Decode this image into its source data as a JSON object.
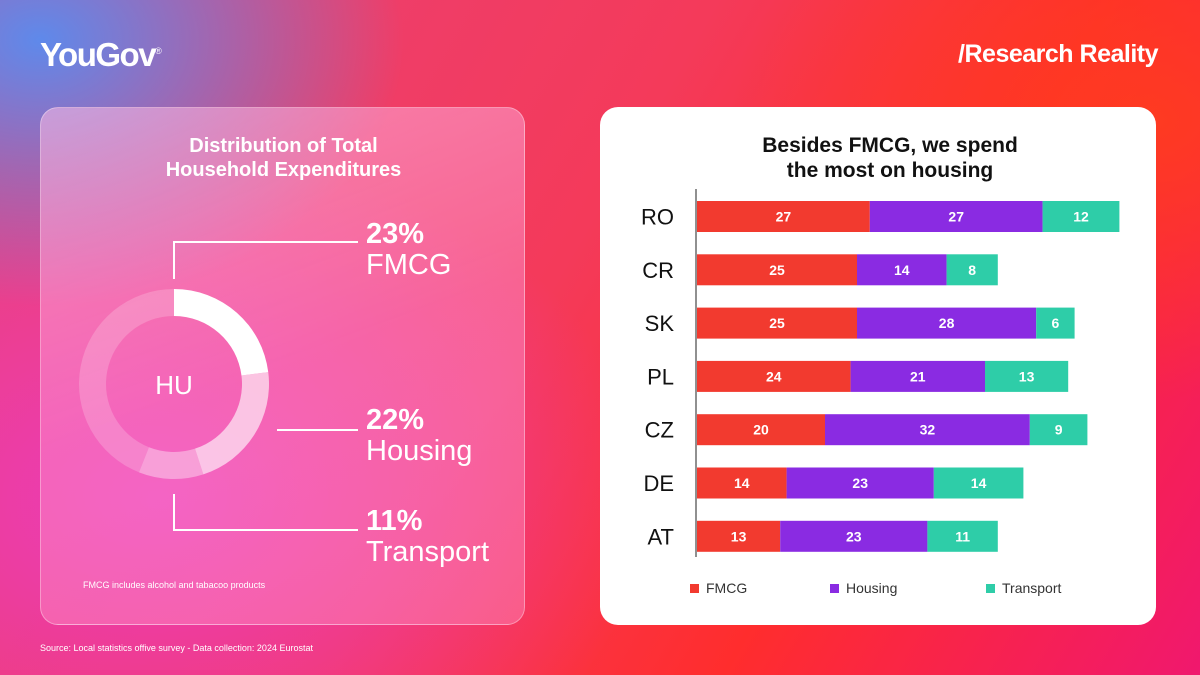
{
  "brand": {
    "logo": "YouGov",
    "logo_mark": "®",
    "tagline": "/Research Reality"
  },
  "source": "Source: Local statistics offive survey - Data collection: 2024 Eurostat",
  "left": {
    "title_line1": "Distribution of Total",
    "title_line2": "Household Expenditures",
    "donut_center": "HU",
    "stats": [
      {
        "pct": "23%",
        "label": "FMCG",
        "value": 23
      },
      {
        "pct": "22%",
        "label": "Housing",
        "value": 22
      },
      {
        "pct": "11%",
        "label": "Transport",
        "value": 11
      }
    ],
    "footnote": "FMCG includes alcohol and tabacoo products"
  },
  "right": {
    "title_line1": "Besides FMCG, we spend",
    "title_line2": "the most on housing"
  },
  "chart_data": {
    "type": "bar",
    "orientation": "horizontal",
    "stacked": true,
    "title": "Besides FMCG, we spend the most on housing",
    "categories": [
      "RO",
      "CR",
      "SK",
      "PL",
      "CZ",
      "DE",
      "AT"
    ],
    "series": [
      {
        "name": "FMCG",
        "color": "#f23a2f",
        "values": [
          27,
          25,
          25,
          24,
          20,
          14,
          13
        ]
      },
      {
        "name": "Housing",
        "color": "#8a2be2",
        "values": [
          27,
          14,
          28,
          21,
          32,
          23,
          23
        ]
      },
      {
        "name": "Transport",
        "color": "#2ecda8",
        "values": [
          12,
          8,
          6,
          13,
          9,
          14,
          11
        ]
      }
    ],
    "legend_position": "bottom",
    "data_labels": true,
    "grid": false
  },
  "colors": {
    "fmcg": "#f23a2f",
    "housing": "#8a2be2",
    "transport": "#2ecda8"
  }
}
